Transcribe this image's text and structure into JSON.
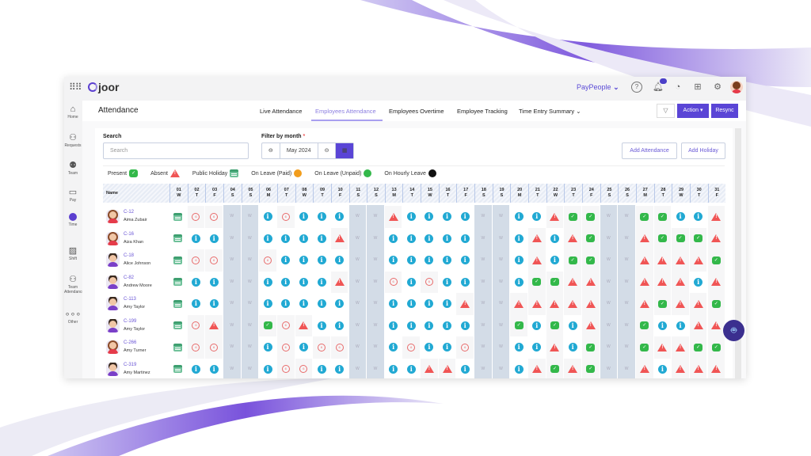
{
  "app": {
    "logo": "joor",
    "org": "PayPeople",
    "notification_count": "8"
  },
  "sidebar": {
    "items": [
      {
        "label": "Home",
        "icon": "home-icon"
      },
      {
        "label": "Requests",
        "icon": "requests-icon"
      },
      {
        "label": "Team",
        "icon": "team-icon"
      },
      {
        "label": "Pay",
        "icon": "pay-icon"
      },
      {
        "label": "Time",
        "icon": "clock-icon",
        "active": true
      },
      {
        "label": "Shift",
        "icon": "shift-icon"
      },
      {
        "label": "Team Attendance",
        "icon": "team-attendance-icon"
      },
      {
        "label": "Other",
        "icon": "more-icon"
      }
    ]
  },
  "header": {
    "title": "Attendance",
    "tabs": [
      {
        "label": "Live Attendance"
      },
      {
        "label": "Employees Attendance",
        "active": true
      },
      {
        "label": "Employees Overtime"
      },
      {
        "label": "Employee Tracking"
      },
      {
        "label": "Time Entry Summary"
      }
    ],
    "action_label": "Action",
    "resync_label": "Resync"
  },
  "filters": {
    "search_label": "Search",
    "search_placeholder": "Search",
    "month_label": "Filter by month",
    "required_mark": "*",
    "month_value": "May 2024",
    "add_attendance": "Add Attendance",
    "add_holiday": "Add Holiday"
  },
  "legend": [
    {
      "label": "Present",
      "code": "P"
    },
    {
      "label": "Absent",
      "code": "A"
    },
    {
      "label": "Public Holiday",
      "code": "H"
    },
    {
      "label": "On Leave (Paid)",
      "code": "O"
    },
    {
      "label": "On Leave (Unpaid)",
      "code": "G"
    },
    {
      "label": "On Hourly Leave",
      "code": "B"
    }
  ],
  "status_codes": {
    "P": "present",
    "A": "absent",
    "H": "public-holiday",
    "I": "info",
    "C": "late-clock",
    "W": "weekend"
  },
  "colors": {
    "accent": "#5a45d6",
    "info": "#21a9d3",
    "absent": "#f05555",
    "present": "#33b84a",
    "weekend": "#d3dce7"
  },
  "table": {
    "name_header": "Name",
    "weekend_mark": "W",
    "days": [
      [
        "01",
        "W"
      ],
      [
        "02",
        "T"
      ],
      [
        "03",
        "F"
      ],
      [
        "04",
        "S"
      ],
      [
        "05",
        "S"
      ],
      [
        "06",
        "M"
      ],
      [
        "07",
        "T"
      ],
      [
        "08",
        "W"
      ],
      [
        "09",
        "T"
      ],
      [
        "10",
        "F"
      ],
      [
        "11",
        "S"
      ],
      [
        "12",
        "S"
      ],
      [
        "13",
        "M"
      ],
      [
        "14",
        "T"
      ],
      [
        "15",
        "W"
      ],
      [
        "16",
        "T"
      ],
      [
        "17",
        "F"
      ],
      [
        "18",
        "S"
      ],
      [
        "19",
        "S"
      ],
      [
        "20",
        "M"
      ],
      [
        "21",
        "T"
      ],
      [
        "22",
        "W"
      ],
      [
        "23",
        "T"
      ],
      [
        "24",
        "F"
      ],
      [
        "25",
        "S"
      ],
      [
        "26",
        "S"
      ],
      [
        "27",
        "M"
      ],
      [
        "28",
        "T"
      ],
      [
        "29",
        "W"
      ],
      [
        "30",
        "T"
      ],
      [
        "31",
        "F"
      ]
    ],
    "rows": [
      {
        "id": "C-12",
        "name": "Aima Zubair",
        "gender": "f",
        "days": "HCCWWiCiiiWWAiiiiWWiiAPPWWPPiiA"
      },
      {
        "id": "C-16",
        "name": "Aiza Khan",
        "gender": "f",
        "days": "HiiWWiiiiAWWiiiiiWWiAiAPWWAPPPA"
      },
      {
        "id": "C-18",
        "name": "Alice Johnson",
        "gender": "m",
        "days": "HCCWWCiiiiWWiiiiiWWiAiPPWWAAAAP"
      },
      {
        "id": "C-82",
        "name": "Andrew Moore",
        "gender": "m",
        "days": "HiiWWiiiiAWWCiCiiWWiPPAAWWAAAiA"
      },
      {
        "id": "C-113",
        "name": "Amy Taylor",
        "gender": "m",
        "days": "HiiWWiiiiiWWiiiiAWWAAAAAWWAPAAP"
      },
      {
        "id": "C-199",
        "name": "Amy Taylor",
        "gender": "m",
        "days": "HCAWWPCAiiWWiiiiiWWPiPiAWWPiiAA"
      },
      {
        "id": "C-266",
        "name": "Amy Turner",
        "gender": "f",
        "days": "HCCWWiCiCCWWiCiiCWWiiAiPWWPAAPP"
      },
      {
        "id": "C-319",
        "name": "Amy Martinez",
        "gender": "m",
        "days": "HiiWWiCCiiWWiiAAiWWiAPAPWWAiAAA"
      }
    ]
  }
}
